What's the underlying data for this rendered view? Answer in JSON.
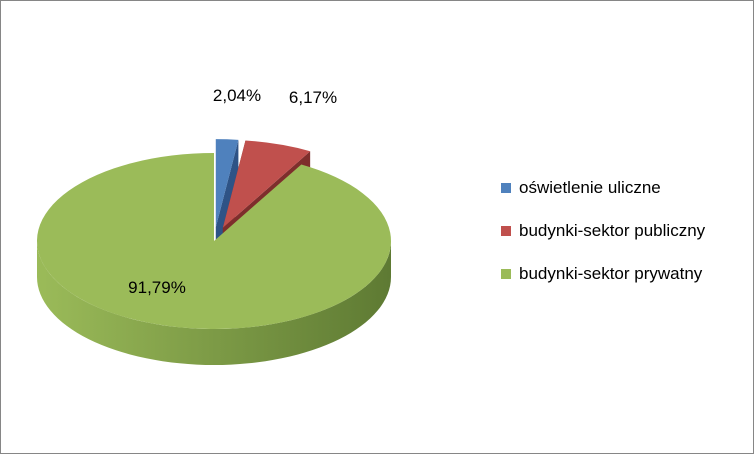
{
  "chart_data": {
    "type": "pie",
    "style": "3d-exploded",
    "categories": [
      "oświetlenie uliczne",
      "budynki-sektor publiczny",
      "budynki-sektor prywatny"
    ],
    "values": [
      2.04,
      6.17,
      91.79
    ],
    "data_labels": [
      "2,04%",
      "6,17%",
      "91,79%"
    ],
    "colors": [
      "#4F81BD",
      "#C0504D",
      "#9BBB59"
    ],
    "side_colors": [
      "#2E5386",
      "#7E2E2C",
      "#5E7A33"
    ],
    "legend_position": "right",
    "title": ""
  }
}
